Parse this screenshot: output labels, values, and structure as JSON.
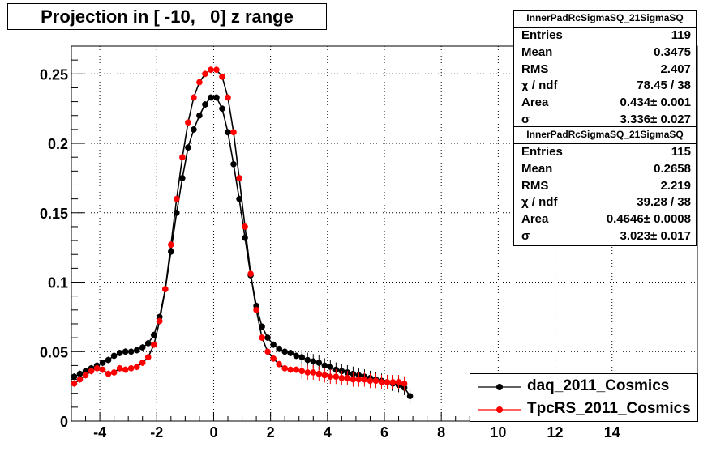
{
  "title": "Projection in [ -10,   0] z range",
  "colors": {
    "daq": "#000000",
    "tpcrs": "#ff0000"
  },
  "stats": [
    {
      "title": "InnerPadRcSigmaSQ_21SigmaSQ",
      "rows": [
        {
          "label": "Entries",
          "value": "119"
        },
        {
          "label": "Mean",
          "value": "0.3475"
        },
        {
          "label": "RMS",
          "value": "2.407"
        },
        {
          "label": "χ  / ndf",
          "value": "78.45 / 38"
        },
        {
          "label": "Area",
          "value": "0.434± 0.001"
        },
        {
          "label": "σ",
          "value": "3.336± 0.027"
        }
      ]
    },
    {
      "title": "InnerPadRcSigmaSQ_21SigmaSQ",
      "rows": [
        {
          "label": "Entries",
          "value": "115"
        },
        {
          "label": "Mean",
          "value": "0.2658"
        },
        {
          "label": "RMS",
          "value": "2.219"
        },
        {
          "label": "χ  / ndf",
          "value": "39.28 / 38"
        },
        {
          "label": "Area",
          "value": "0.4646± 0.0008"
        },
        {
          "label": "σ",
          "value": "3.023± 0.017"
        }
      ]
    }
  ],
  "legend": [
    {
      "label": "daq_2011_Cosmics",
      "color": "#000000"
    },
    {
      "label": "TpcRS_2011_Cosmics",
      "color": "#ff0000"
    }
  ],
  "chart_data": {
    "type": "scatter",
    "title": "Projection in [ -10,   0] z range",
    "xlim": [
      -5,
      17
    ],
    "ylim": [
      0,
      0.27
    ],
    "xticks": [
      -4,
      -2,
      0,
      2,
      4,
      6,
      8,
      10,
      12,
      14
    ],
    "yticks": [
      0,
      0.05,
      0.1,
      0.15,
      0.2,
      0.25
    ],
    "ytick_labels": [
      "0",
      "0.05",
      "0.1",
      "0.15",
      "0.2",
      "0.25"
    ],
    "grid": true,
    "legend_position": "bottom-right",
    "series": [
      {
        "name": "daq_2011_Cosmics",
        "color": "#000000",
        "x": [
          -4.9,
          -4.7,
          -4.5,
          -4.3,
          -4.1,
          -3.9,
          -3.7,
          -3.5,
          -3.3,
          -3.1,
          -2.9,
          -2.7,
          -2.5,
          -2.3,
          -2.1,
          -1.9,
          -1.7,
          -1.5,
          -1.3,
          -1.1,
          -0.9,
          -0.7,
          -0.5,
          -0.3,
          -0.1,
          0.1,
          0.3,
          0.5,
          0.7,
          0.9,
          1.1,
          1.3,
          1.5,
          1.7,
          1.9,
          2.1,
          2.3,
          2.5,
          2.7,
          2.9,
          3.1,
          3.3,
          3.5,
          3.7,
          3.9,
          4.1,
          4.3,
          4.5,
          4.7,
          4.9,
          5.1,
          5.3,
          5.5,
          5.7,
          5.9,
          6.1,
          6.3,
          6.5,
          6.7,
          6.9
        ],
        "y": [
          0.032,
          0.034,
          0.036,
          0.038,
          0.04,
          0.042,
          0.044,
          0.047,
          0.049,
          0.05,
          0.05,
          0.051,
          0.053,
          0.056,
          0.062,
          0.075,
          0.095,
          0.122,
          0.15,
          0.175,
          0.197,
          0.21,
          0.22,
          0.228,
          0.233,
          0.233,
          0.225,
          0.208,
          0.185,
          0.16,
          0.132,
          0.105,
          0.083,
          0.068,
          0.06,
          0.055,
          0.052,
          0.05,
          0.049,
          0.047,
          0.046,
          0.044,
          0.043,
          0.042,
          0.04,
          0.039,
          0.037,
          0.036,
          0.035,
          0.034,
          0.033,
          0.032,
          0.031,
          0.03,
          0.029,
          0.028,
          0.027,
          0.026,
          0.024,
          0.018
        ]
      },
      {
        "name": "TpcRS_2011_Cosmics",
        "color": "#ff0000",
        "x": [
          -4.9,
          -4.7,
          -4.5,
          -4.3,
          -4.1,
          -3.9,
          -3.7,
          -3.5,
          -3.3,
          -3.1,
          -2.9,
          -2.7,
          -2.5,
          -2.3,
          -2.1,
          -1.9,
          -1.7,
          -1.5,
          -1.3,
          -1.1,
          -0.9,
          -0.7,
          -0.5,
          -0.3,
          -0.1,
          0.1,
          0.3,
          0.5,
          0.7,
          0.9,
          1.1,
          1.3,
          1.5,
          1.7,
          1.9,
          2.1,
          2.3,
          2.5,
          2.7,
          2.9,
          3.1,
          3.3,
          3.5,
          3.7,
          3.9,
          4.1,
          4.3,
          4.5,
          4.7,
          4.9,
          5.1,
          5.3,
          5.5,
          5.7,
          5.9,
          6.1,
          6.3,
          6.5,
          6.7
        ],
        "y": [
          0.027,
          0.03,
          0.033,
          0.036,
          0.038,
          0.037,
          0.034,
          0.035,
          0.038,
          0.037,
          0.038,
          0.039,
          0.042,
          0.046,
          0.055,
          0.072,
          0.095,
          0.127,
          0.16,
          0.19,
          0.215,
          0.233,
          0.244,
          0.25,
          0.253,
          0.253,
          0.248,
          0.233,
          0.208,
          0.175,
          0.14,
          0.106,
          0.08,
          0.06,
          0.05,
          0.045,
          0.041,
          0.038,
          0.037,
          0.037,
          0.036,
          0.035,
          0.035,
          0.034,
          0.033,
          0.032,
          0.032,
          0.031,
          0.031,
          0.03,
          0.03,
          0.03,
          0.029,
          0.029,
          0.028,
          0.028,
          0.028,
          0.028,
          0.027
        ]
      }
    ]
  }
}
